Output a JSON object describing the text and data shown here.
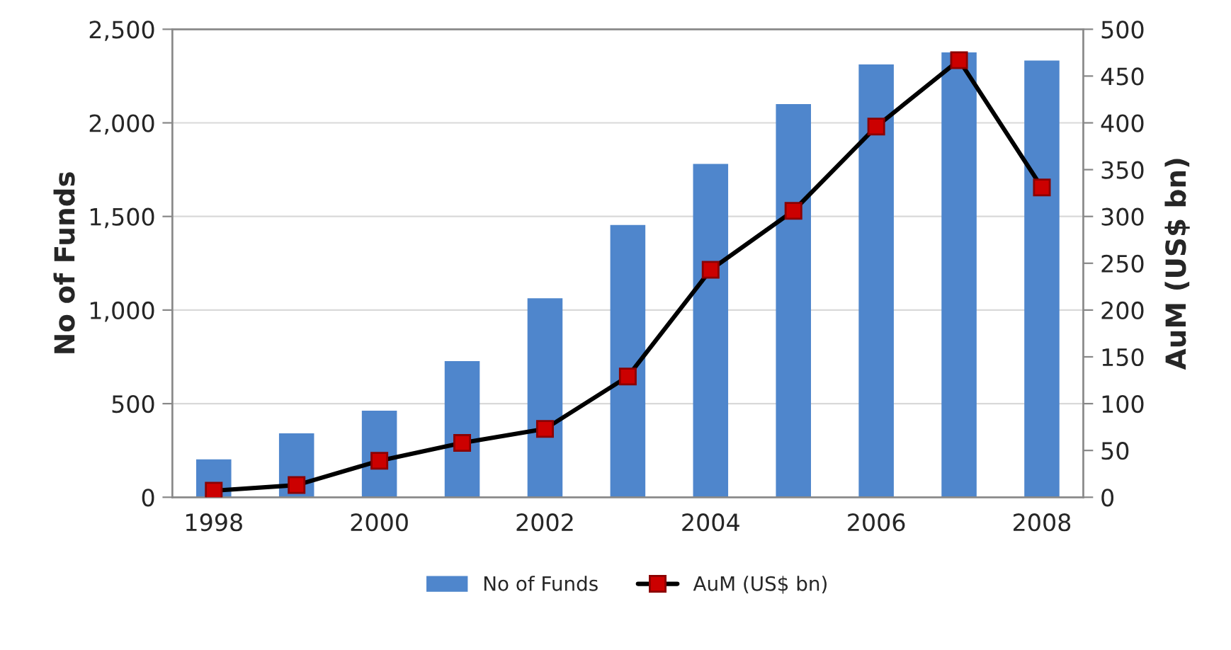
{
  "chart_data": {
    "type": "bar",
    "categories": [
      "1998",
      null,
      "2000",
      null,
      "2002",
      null,
      "2004",
      null,
      "2006",
      null,
      "2008"
    ],
    "ylabel": "No of Funds",
    "y2label": "AuM (US$ bn)",
    "series": [
      {
        "name": "No of Funds",
        "color": "#4f86cc",
        "values": [
          197,
          336,
          457,
          722,
          1058,
          1449,
          1775,
          2095,
          2307,
          2371,
          2328
        ]
      },
      {
        "name": "AuM (US$ bn)",
        "type": "line",
        "axis": "y2",
        "color": "#000000",
        "colors": [
          "#cc0000",
          "#cc0000",
          "#cc0000",
          "#cc0000",
          "#cc0000",
          "#cc0000",
          "#cc0000",
          "#cc0000",
          "#cc0000",
          "#cc0000",
          "#cc0000"
        ],
        "values": [
          7,
          13,
          39,
          58,
          73,
          129,
          243,
          306,
          396,
          467,
          331
        ]
      }
    ],
    "ylim": [
      0,
      2500
    ],
    "yticks": [
      0,
      {
        "value": 500,
        "label": "500"
      },
      {
        "value": 1000,
        "label": "1,000"
      },
      {
        "value": 1500,
        "label": "1,500"
      },
      {
        "value": 2000,
        "label": "2,000"
      },
      {
        "value": 2500,
        "label": "2,500"
      }
    ],
    "y2lim": [
      0,
      500
    ],
    "y2ticks": [
      0,
      50,
      100,
      150,
      200,
      250,
      300,
      350,
      400,
      450,
      500
    ],
    "grid": "y",
    "legend": "bottom",
    "marker": "square",
    "line_style": "solid"
  }
}
